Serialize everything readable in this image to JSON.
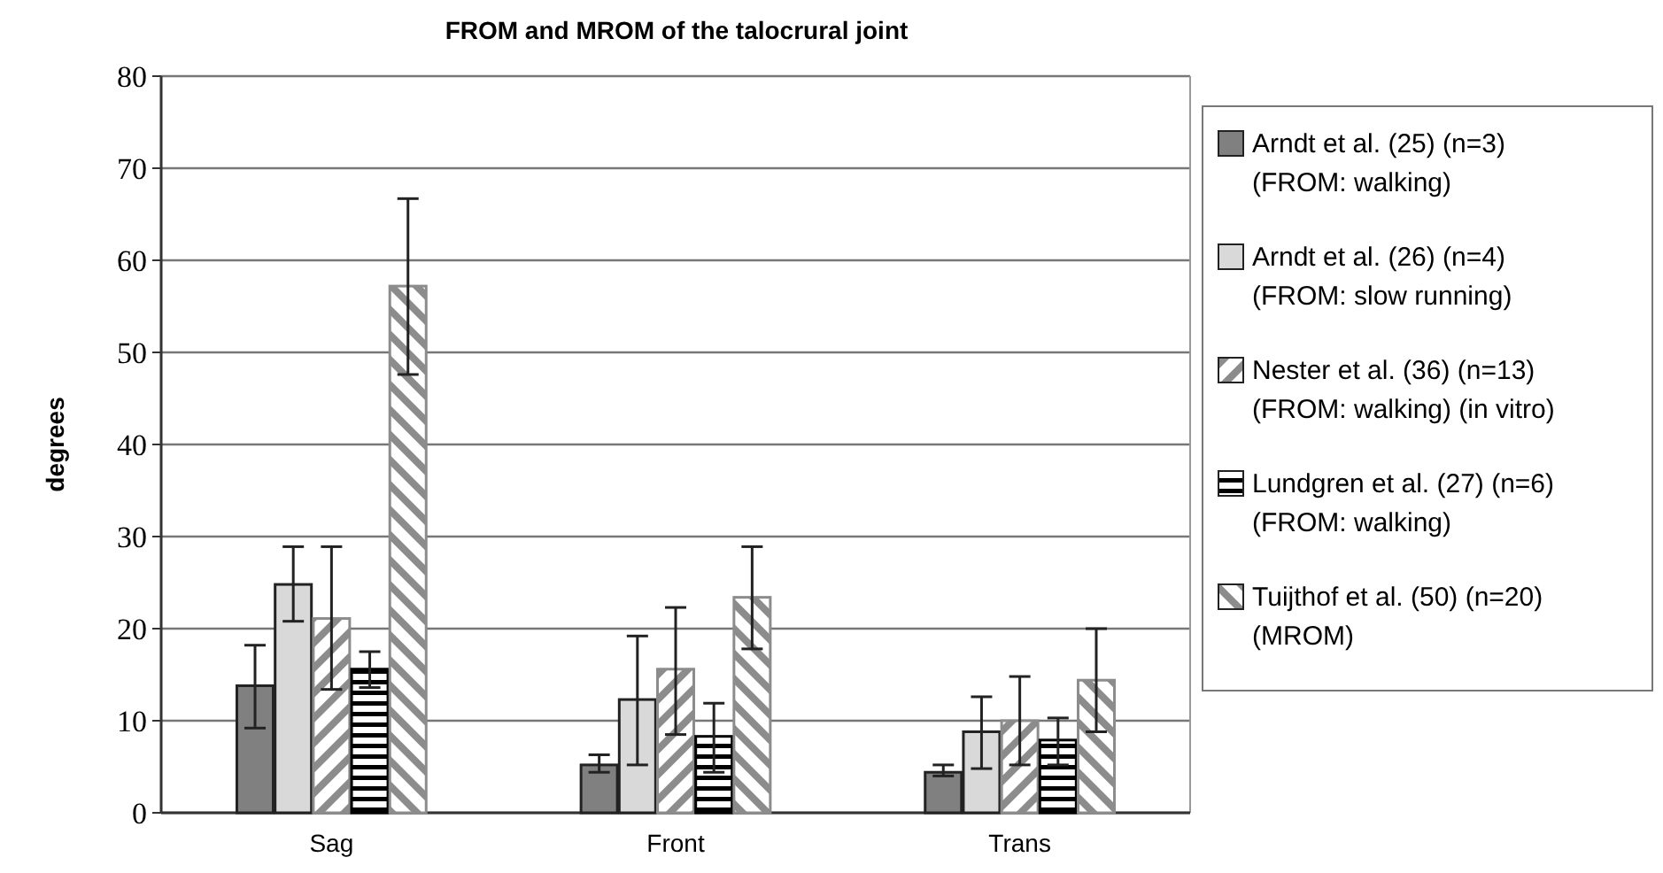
{
  "chart_data": {
    "type": "bar",
    "title": "FROM and MROM of the talocrural joint",
    "ylabel": "degrees",
    "categories": [
      "Sag",
      "Front",
      "Trans"
    ],
    "ylim": [
      0,
      80
    ],
    "yticks": [
      0,
      10,
      20,
      30,
      40,
      50,
      60,
      70,
      80
    ],
    "grid": "y",
    "legend": "right",
    "series": [
      {
        "name": "Arndt et al. (25) (n=3) (FROM: walking)",
        "color": "#808080",
        "values": [
          13.8,
          5.2,
          4.4
        ],
        "errors": [
          [
            9.2,
            18.2
          ],
          [
            4.4,
            6.3
          ],
          [
            4.0,
            5.2
          ]
        ]
      },
      {
        "name": "Arndt et al. (26) (n=4) (FROM: slow running)",
        "color": "#d9d9d9",
        "values": [
          24.8,
          12.3,
          8.8
        ],
        "errors": [
          [
            20.8,
            28.9
          ],
          [
            5.2,
            19.2
          ],
          [
            4.8,
            12.6
          ]
        ]
      },
      {
        "name": "Nester et al. (36) (n=13) (FROM: walking) (in vitro)",
        "color": "#8c8c8c",
        "values": [
          21.1,
          15.6,
          10.0
        ],
        "errors": [
          [
            13.4,
            28.9
          ],
          [
            8.5,
            22.3
          ],
          [
            5.2,
            14.8
          ]
        ]
      },
      {
        "name": "Lundgren et al. (27) (n=6) (FROM: walking)",
        "color": "#000000",
        "values": [
          15.6,
          8.3,
          7.9
        ],
        "errors": [
          [
            13.6,
            17.5
          ],
          [
            4.4,
            11.9
          ],
          [
            5.2,
            10.3
          ]
        ]
      },
      {
        "name": "Tuijthof et al. (50) (n=20) (MROM)",
        "color": "#8c8c8c",
        "values": [
          57.2,
          23.4,
          14.4
        ],
        "errors": [
          [
            47.6,
            66.7
          ],
          [
            17.8,
            28.9
          ],
          [
            8.8,
            20.0
          ]
        ]
      }
    ]
  }
}
